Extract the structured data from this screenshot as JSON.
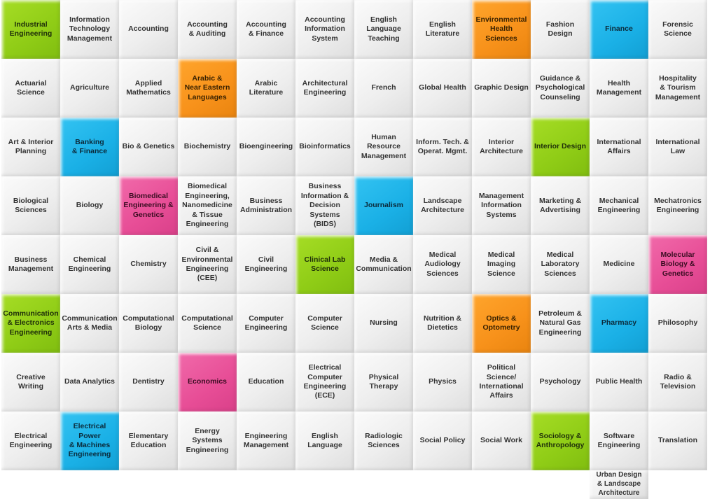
{
  "palette": {
    "green": "#8fcc16",
    "blue": "#1ab0e6",
    "orange": "#f7911a",
    "pink": "#e74d96",
    "neutral": "#eeeeee"
  },
  "tiles": [
    {
      "label": "Industrial\nEngineering",
      "color": "green"
    },
    {
      "label": "Information\nTechnology\nManagement",
      "color": "neutral"
    },
    {
      "label": "Accounting",
      "color": "neutral"
    },
    {
      "label": "Accounting\n& Auditing",
      "color": "neutral"
    },
    {
      "label": "Accounting\n& Finance",
      "color": "neutral"
    },
    {
      "label": "Accounting\nInformation\nSystem",
      "color": "neutral"
    },
    {
      "label": "English Language\nTeaching",
      "color": "neutral"
    },
    {
      "label": "English Literature",
      "color": "neutral"
    },
    {
      "label": "Environmental\nHealth Sciences",
      "color": "orange"
    },
    {
      "label": "Fashion Design",
      "color": "neutral"
    },
    {
      "label": "Finance",
      "color": "blue"
    },
    {
      "label": "Forensic Science",
      "color": "neutral"
    },
    {
      "label": "Actuarial\nScience",
      "color": "neutral"
    },
    {
      "label": "Agriculture",
      "color": "neutral"
    },
    {
      "label": "Applied\nMathematics",
      "color": "neutral"
    },
    {
      "label": "Arabic &\nNear Eastern\nLanguages",
      "color": "orange"
    },
    {
      "label": "Arabic\nLiterature",
      "color": "neutral"
    },
    {
      "label": "Architectural\nEngineering",
      "color": "neutral"
    },
    {
      "label": "French",
      "color": "neutral"
    },
    {
      "label": "Global Health",
      "color": "neutral"
    },
    {
      "label": "Graphic Design",
      "color": "neutral"
    },
    {
      "label": "Guidance &\nPsychological\nCounseling",
      "color": "neutral"
    },
    {
      "label": "Health\nManagement",
      "color": "neutral"
    },
    {
      "label": "Hospitality\n& Tourism\nManagement",
      "color": "neutral"
    },
    {
      "label": "Art & Interior\nPlanning",
      "color": "neutral"
    },
    {
      "label": "Banking\n& Finance",
      "color": "blue"
    },
    {
      "label": "Bio & Genetics",
      "color": "neutral"
    },
    {
      "label": "Biochemistry",
      "color": "neutral"
    },
    {
      "label": "Bioengineering",
      "color": "neutral"
    },
    {
      "label": "Bioinformatics",
      "color": "neutral"
    },
    {
      "label": "Human\nResource\nManagement",
      "color": "neutral"
    },
    {
      "label": "Inform. Tech. &\nOperat. Mgmt.",
      "color": "neutral"
    },
    {
      "label": "Interior\nArchitecture",
      "color": "neutral"
    },
    {
      "label": "Interior Design",
      "color": "green"
    },
    {
      "label": "International\nAffairs",
      "color": "neutral"
    },
    {
      "label": "International Law",
      "color": "neutral"
    },
    {
      "label": "Biological\nSciences",
      "color": "neutral"
    },
    {
      "label": "Biology",
      "color": "neutral"
    },
    {
      "label": "Biomedical\nEngineering &\nGenetics",
      "color": "pink"
    },
    {
      "label": "Biomedical\nEngineering,\nNanomedicine\n& Tissue\nEngineering",
      "color": "neutral"
    },
    {
      "label": "Business\nAdministration",
      "color": "neutral"
    },
    {
      "label": "Business\nInformation &\nDecision Systems\n(BIDS)",
      "color": "neutral"
    },
    {
      "label": "Journalism",
      "color": "blue"
    },
    {
      "label": "Landscape\nArchitecture",
      "color": "neutral"
    },
    {
      "label": "Management\nInformation\nSystems",
      "color": "neutral"
    },
    {
      "label": "Marketing &\nAdvertising",
      "color": "neutral"
    },
    {
      "label": "Mechanical\nEngineering",
      "color": "neutral"
    },
    {
      "label": "Mechatronics\nEngineering",
      "color": "neutral"
    },
    {
      "label": "Business\nManagement",
      "color": "neutral"
    },
    {
      "label": "Chemical\nEngineering",
      "color": "neutral"
    },
    {
      "label": "Chemistry",
      "color": "neutral"
    },
    {
      "label": "Civil &\nEnvironmental\nEngineering\n(CEE)",
      "color": "neutral"
    },
    {
      "label": "Civil\nEngineering",
      "color": "neutral"
    },
    {
      "label": "Clinical Lab\nScience",
      "color": "green"
    },
    {
      "label": "Media &\nCommunication",
      "color": "neutral"
    },
    {
      "label": "Medical\nAudiology\nSciences",
      "color": "neutral"
    },
    {
      "label": "Medical\nImaging\nScience",
      "color": "neutral"
    },
    {
      "label": "Medical\nLaboratory\nSciences",
      "color": "neutral"
    },
    {
      "label": "Medicine",
      "color": "neutral"
    },
    {
      "label": "Molecular\nBiology &\nGenetics",
      "color": "pink"
    },
    {
      "label": "Communication\n& Electronics\nEngineering",
      "color": "green"
    },
    {
      "label": "Communication\nArts & Media",
      "color": "neutral"
    },
    {
      "label": "Computational\nBiology",
      "color": "neutral"
    },
    {
      "label": "Computational\nScience",
      "color": "neutral"
    },
    {
      "label": "Computer\nEngineering",
      "color": "neutral"
    },
    {
      "label": "Computer\nScience",
      "color": "neutral"
    },
    {
      "label": "Nursing",
      "color": "neutral"
    },
    {
      "label": "Nutrition &\nDietetics",
      "color": "neutral"
    },
    {
      "label": "Optics &\nOptometry",
      "color": "orange"
    },
    {
      "label": "Petroleum &\nNatural Gas\nEngineering",
      "color": "neutral"
    },
    {
      "label": "Pharmacy",
      "color": "blue"
    },
    {
      "label": "Philosophy",
      "color": "neutral"
    },
    {
      "label": "Creative Writing",
      "color": "neutral"
    },
    {
      "label": "Data Analytics",
      "color": "neutral"
    },
    {
      "label": "Dentistry",
      "color": "neutral"
    },
    {
      "label": "Economics",
      "color": "pink"
    },
    {
      "label": "Education",
      "color": "neutral"
    },
    {
      "label": "Electrical\nComputer\nEngineering\n(ECE)",
      "color": "neutral"
    },
    {
      "label": "Physical Therapy",
      "color": "neutral"
    },
    {
      "label": "Physics",
      "color": "neutral"
    },
    {
      "label": "Political Science/\nInternational\nAffairs",
      "color": "neutral"
    },
    {
      "label": "Psychology",
      "color": "neutral"
    },
    {
      "label": "Public Health",
      "color": "neutral"
    },
    {
      "label": "Radio & Television",
      "color": "neutral"
    },
    {
      "label": "Electrical\nEngineering",
      "color": "neutral"
    },
    {
      "label": "Electrical Power\n& Machines\nEngineering",
      "color": "blue"
    },
    {
      "label": "Elementary\nEducation",
      "color": "neutral"
    },
    {
      "label": "Energy Systems\nEngineering",
      "color": "neutral"
    },
    {
      "label": "Engineering\nManagement",
      "color": "neutral"
    },
    {
      "label": "English\nLanguage",
      "color": "neutral"
    },
    {
      "label": "Radiologic\nSciences",
      "color": "neutral"
    },
    {
      "label": "Social Policy",
      "color": "neutral"
    },
    {
      "label": "Social Work",
      "color": "neutral"
    },
    {
      "label": "Sociology &\nAnthropology",
      "color": "green"
    },
    {
      "label": "Software\nEngineering",
      "color": "neutral"
    },
    {
      "label": "Translation",
      "color": "neutral"
    },
    {
      "label": "Urban Design\n& Landscape\nArchitecture",
      "color": "neutral"
    }
  ]
}
